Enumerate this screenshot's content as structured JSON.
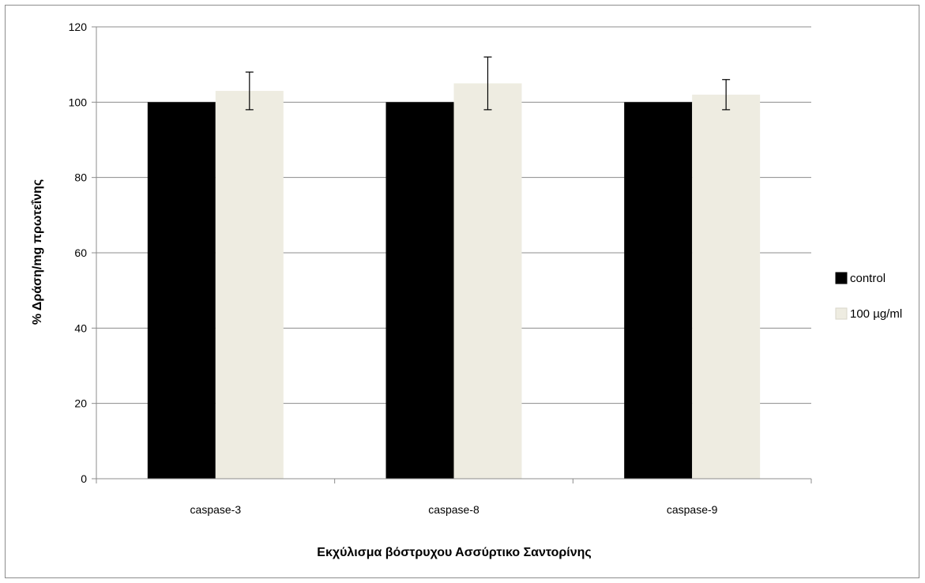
{
  "chart_data": {
    "type": "bar",
    "title": "",
    "xlabel": "Εκχύλισμα βόστρυχου Ασσύρτικο Σαντορίνης",
    "ylabel": "% Δράση/mg πρωτεΐνης",
    "categories": [
      "caspase-3",
      "caspase-8",
      "caspase-9"
    ],
    "ylim": [
      0,
      120
    ],
    "yticks": [
      0,
      20,
      40,
      60,
      80,
      100,
      120
    ],
    "grid": true,
    "legend_position": "right",
    "series": [
      {
        "name": "control",
        "color": "#000000",
        "values": [
          100,
          100,
          100
        ],
        "error": [
          0,
          0,
          0
        ]
      },
      {
        "name": "100 µg/ml",
        "color": "#eeece1",
        "values": [
          103,
          105,
          102
        ],
        "error": [
          5,
          7,
          4
        ]
      }
    ]
  }
}
